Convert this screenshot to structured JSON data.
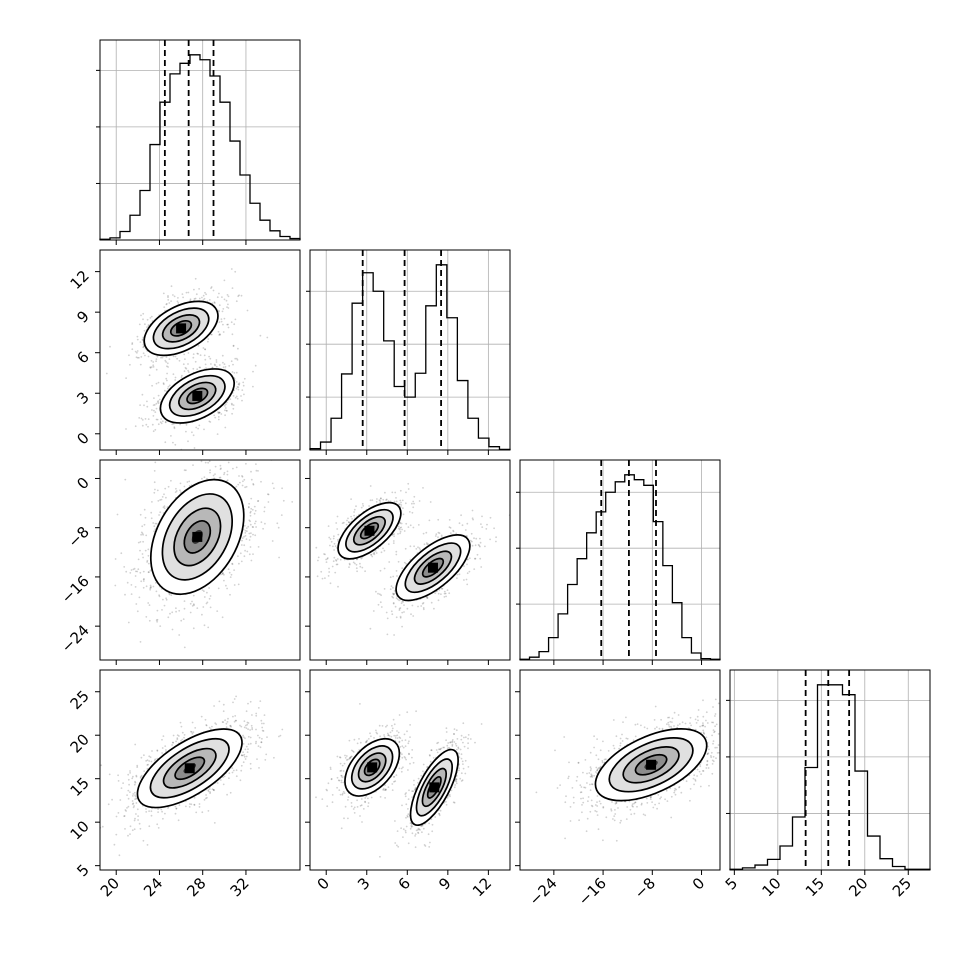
{
  "chart_data": {
    "type": "corner",
    "parameters": [
      {
        "range": [
          18.5,
          37.0
        ],
        "ticks": [
          20,
          24,
          28,
          32
        ],
        "tick_labels": [
          "20",
          "24",
          "28",
          "32"
        ],
        "quantiles": [
          24.5,
          26.7,
          29.0
        ],
        "hist_counts": [
          1,
          3,
          12,
          35,
          70,
          135,
          195,
          235,
          250,
          262,
          255,
          232,
          195,
          140,
          92,
          52,
          28,
          13,
          5,
          2
        ]
      },
      {
        "range": [
          -1.2,
          13.6
        ],
        "ticks": [
          0,
          3,
          6,
          9,
          12
        ],
        "tick_labels": [
          "0",
          "3",
          "6",
          "9",
          "12"
        ],
        "quantiles": [
          2.7,
          5.8,
          8.5
        ],
        "hist_counts": [
          2,
          12,
          48,
          115,
          222,
          268,
          240,
          165,
          96,
          80,
          116,
          218,
          280,
          200,
          105,
          48,
          18,
          5,
          1
        ]
      },
      {
        "range": [
          -29.5,
          3.0
        ],
        "ticks": [
          -24,
          -16,
          -8,
          0
        ],
        "tick_labels": [
          "−24",
          "−16",
          "−8",
          "0"
        ],
        "quantiles": [
          -16.3,
          -11.8,
          -7.4
        ],
        "hist_counts": [
          1,
          4,
          12,
          32,
          66,
          108,
          145,
          182,
          212,
          240,
          255,
          265,
          258,
          250,
          198,
          135,
          82,
          32,
          10,
          2,
          1
        ]
      },
      {
        "range": [
          4.5,
          27.5
        ],
        "ticks": [
          5,
          10,
          15,
          20,
          25
        ],
        "tick_labels": [
          "5",
          "10",
          "15",
          "20",
          "25"
        ],
        "quantiles": [
          13.2,
          15.8,
          18.2
        ],
        "hist_counts": [
          1,
          3,
          7,
          15,
          34,
          75,
          145,
          262,
          262,
          248,
          140,
          48,
          16,
          5,
          1,
          1
        ]
      }
    ],
    "contours": [
      {
        "row": 1,
        "col": 0,
        "peaks": [
          [
            26.0,
            7.8
          ],
          [
            27.5,
            2.8
          ]
        ]
      },
      {
        "row": 2,
        "col": 0,
        "peaks": [
          [
            27.5,
            -9.5
          ]
        ]
      },
      {
        "row": 2,
        "col": 1,
        "peaks": [
          [
            3.2,
            -8.5
          ],
          [
            7.9,
            -14.5
          ]
        ]
      },
      {
        "row": 3,
        "col": 0,
        "peaks": [
          [
            26.8,
            16.2
          ]
        ]
      },
      {
        "row": 3,
        "col": 1,
        "peaks": [
          [
            3.4,
            16.3
          ],
          [
            8.0,
            14.0
          ]
        ]
      },
      {
        "row": 3,
        "col": 2,
        "peaks": [
          [
            -8.2,
            16.6
          ]
        ]
      }
    ]
  }
}
